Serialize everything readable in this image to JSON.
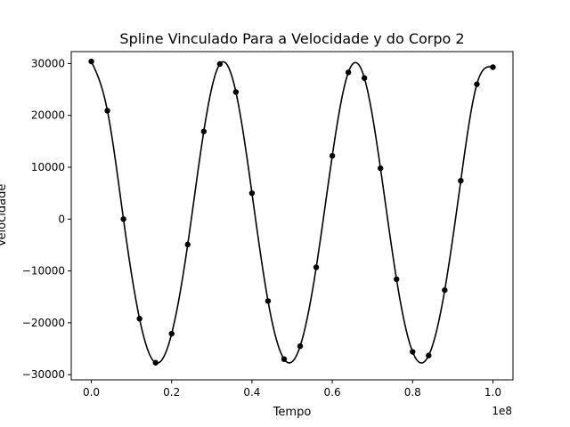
{
  "chart_data": {
    "type": "scatter",
    "title": "Spline Vinculado Para a Velocidade y do Corpo 2",
    "xlabel": "Tempo",
    "ylabel": "Velocidade",
    "x_offset_label": "1e8",
    "x_scale": 100000000,
    "xlim": [
      -5000000,
      105000000
    ],
    "ylim": [
      -31000,
      32300
    ],
    "x_ticks": [
      0,
      20000000,
      40000000,
      60000000,
      80000000,
      100000000
    ],
    "x_tick_labels": [
      "0.0",
      "0.2",
      "0.4",
      "0.6",
      "0.8",
      "1.0"
    ],
    "y_ticks": [
      -30000,
      -20000,
      -10000,
      0,
      10000,
      20000,
      30000
    ],
    "y_tick_labels": [
      "−30000",
      "−20000",
      "−10000",
      "0",
      "10000",
      "20000",
      "30000"
    ],
    "grid": false,
    "series": [
      {
        "kind": "points",
        "color": "#000000",
        "marker": "circle",
        "x": [
          0,
          4000000,
          8000000,
          12000000,
          16000000,
          20000000,
          24000000,
          28000000,
          32000000,
          36000000,
          40000000,
          44000000,
          48000000,
          52000000,
          56000000,
          60000000,
          64000000,
          68000000,
          72000000,
          76000000,
          80000000,
          84000000,
          88000000,
          92000000,
          96000000,
          100000000
        ],
        "y": [
          30400,
          20900,
          0,
          -19200,
          -27700,
          -22100,
          -4900,
          16900,
          29900,
          24500,
          5000,
          -15800,
          -27000,
          -24500,
          -9300,
          12200,
          28300,
          27200,
          9800,
          -11600,
          -25600,
          -26300,
          -13700,
          7400,
          26000,
          29300
        ]
      },
      {
        "kind": "spline",
        "color": "#000000",
        "interpolates": "points"
      }
    ]
  }
}
